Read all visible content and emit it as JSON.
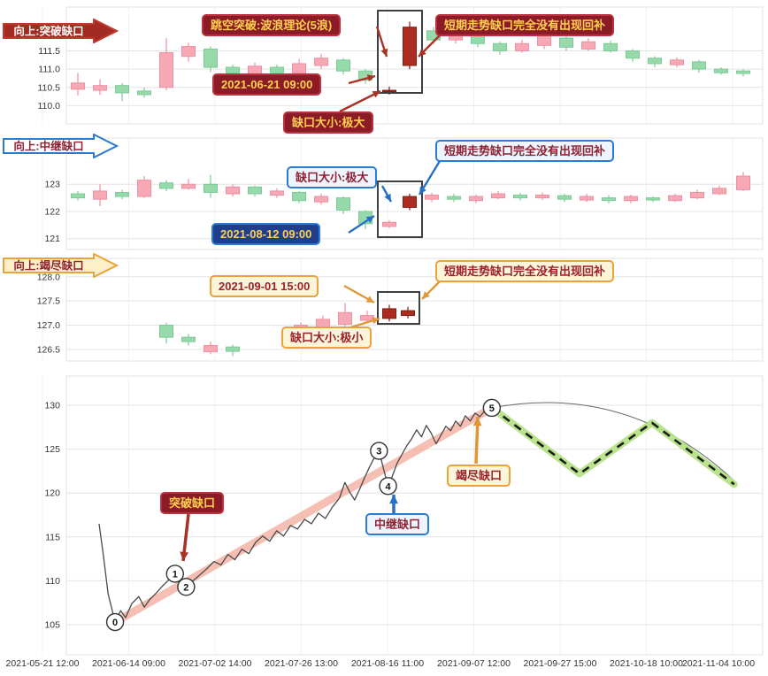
{
  "colors": {
    "up": "#f6a9b4",
    "up_border": "#ef8fa0",
    "down": "#97d9ab",
    "down_border": "#7ccb97",
    "gap_candle": "#ac2d20",
    "gap_candle_border": "#7e1c12",
    "trend_band": "#f3b4a6",
    "forecast_band": "#b5e287",
    "price_line": "#4a4a4a",
    "red_accent": "#a93226",
    "blue_accent": "#2471c7",
    "orange_accent": "#e0973a",
    "grid": "#e4e4e4",
    "highlight_box": "#3c4043"
  },
  "candle_format": "x,open,close,low,high,kind(u=up,d=down,g=gap-candle)",
  "chart_data": [
    {
      "type": "candlestick",
      "name": "breakaway-gap-panel",
      "badge": "向上:突破缺口",
      "ylim": [
        109.5,
        112.7
      ],
      "ytick_labels": [
        "111.5",
        "111.0",
        "110.5",
        "110.0"
      ],
      "ytick_values": [
        111.5,
        111.0,
        110.5,
        110.0
      ],
      "annotations": [
        "跳空突破:波浪理论(5浪)",
        "短期走势缺口完全没有出现回补",
        "2021-06-21 09:00",
        "缺口大小:极大"
      ],
      "candles": [
        [
          88,
          110.45,
          110.62,
          110.28,
          110.9,
          "u"
        ],
        [
          113,
          110.42,
          110.55,
          110.3,
          110.72,
          "u"
        ],
        [
          138,
          110.55,
          110.35,
          110.12,
          110.62,
          "d"
        ],
        [
          163,
          110.4,
          110.3,
          110.22,
          110.5,
          "d"
        ],
        [
          188,
          110.5,
          111.45,
          110.42,
          111.85,
          "u"
        ],
        [
          213,
          111.35,
          111.62,
          111.2,
          111.72,
          "u"
        ],
        [
          238,
          111.55,
          111.05,
          110.92,
          111.62,
          "d"
        ],
        [
          263,
          111.05,
          110.88,
          110.78,
          111.12,
          "d"
        ],
        [
          288,
          110.85,
          111.08,
          110.8,
          111.18,
          "u"
        ],
        [
          313,
          111.05,
          110.9,
          110.8,
          111.12,
          "d"
        ],
        [
          338,
          110.88,
          111.15,
          110.82,
          111.28,
          "u"
        ],
        [
          363,
          111.1,
          111.3,
          111.0,
          111.42,
          "u"
        ],
        [
          388,
          111.25,
          110.95,
          110.85,
          111.3,
          "d"
        ],
        [
          413,
          110.95,
          110.7,
          110.6,
          111.0,
          "d"
        ],
        [
          440,
          110.42,
          110.38,
          110.3,
          110.52,
          "g"
        ],
        [
          463,
          111.1,
          112.15,
          111.0,
          112.3,
          "g"
        ],
        [
          490,
          112.05,
          111.8,
          111.7,
          112.15,
          "d"
        ],
        [
          515,
          111.8,
          112.0,
          111.7,
          112.1,
          "u"
        ],
        [
          540,
          111.95,
          111.7,
          111.6,
          112.0,
          "d"
        ],
        [
          565,
          111.7,
          111.5,
          111.4,
          111.75,
          "d"
        ],
        [
          590,
          111.5,
          111.7,
          111.45,
          111.8,
          "u"
        ],
        [
          615,
          111.65,
          111.92,
          111.55,
          112.02,
          "u"
        ],
        [
          640,
          111.85,
          111.6,
          111.5,
          111.92,
          "d"
        ],
        [
          665,
          111.55,
          111.75,
          111.5,
          111.85,
          "u"
        ],
        [
          690,
          111.7,
          111.5,
          111.45,
          111.78,
          "d"
        ],
        [
          715,
          111.5,
          111.3,
          111.2,
          111.55,
          "d"
        ],
        [
          740,
          111.3,
          111.15,
          111.05,
          111.35,
          "d"
        ],
        [
          765,
          111.12,
          111.25,
          111.05,
          111.32,
          "u"
        ],
        [
          790,
          111.2,
          111.0,
          110.9,
          111.25,
          "d"
        ],
        [
          815,
          111.0,
          110.9,
          110.85,
          111.05,
          "d"
        ],
        [
          840,
          110.95,
          110.88,
          110.8,
          111.0,
          "d"
        ]
      ]
    },
    {
      "type": "candlestick",
      "name": "runaway-gap-panel",
      "badge": "向上:中继缺口",
      "ylim": [
        120.6,
        124.7
      ],
      "ytick_labels": [
        "123",
        "122",
        "121"
      ],
      "ytick_values": [
        123,
        122,
        121
      ],
      "annotations": [
        "缺口大小:极大",
        "短期走势缺口完全没有出现回补",
        "2021-08-12 09:00"
      ],
      "candles": [
        [
          88,
          122.65,
          122.5,
          122.4,
          122.75,
          "d"
        ],
        [
          113,
          122.45,
          122.75,
          122.2,
          123.0,
          "u"
        ],
        [
          138,
          122.7,
          122.55,
          122.45,
          122.8,
          "d"
        ],
        [
          163,
          122.55,
          123.15,
          122.5,
          123.3,
          "u"
        ],
        [
          188,
          123.05,
          122.85,
          122.75,
          123.15,
          "d"
        ],
        [
          213,
          122.85,
          123.0,
          122.8,
          123.2,
          "u"
        ],
        [
          238,
          123.0,
          122.7,
          122.5,
          123.35,
          "d"
        ],
        [
          263,
          122.65,
          122.9,
          122.55,
          123.0,
          "u"
        ],
        [
          288,
          122.9,
          122.65,
          122.55,
          122.95,
          "d"
        ],
        [
          313,
          122.6,
          122.75,
          122.5,
          122.85,
          "u"
        ],
        [
          338,
          122.7,
          122.4,
          122.3,
          122.75,
          "d"
        ],
        [
          363,
          122.35,
          122.55,
          122.25,
          122.65,
          "u"
        ],
        [
          388,
          122.5,
          122.05,
          121.9,
          122.55,
          "d"
        ],
        [
          413,
          122.0,
          121.55,
          121.35,
          122.05,
          "d"
        ],
        [
          440,
          121.45,
          121.6,
          121.38,
          121.68,
          "u"
        ],
        [
          463,
          122.15,
          122.55,
          122.05,
          122.65,
          "g"
        ],
        [
          488,
          122.45,
          122.6,
          122.35,
          122.7,
          "u"
        ],
        [
          513,
          122.55,
          122.45,
          122.35,
          122.65,
          "d"
        ],
        [
          538,
          122.4,
          122.55,
          122.3,
          122.62,
          "u"
        ],
        [
          563,
          122.5,
          122.65,
          122.45,
          122.75,
          "u"
        ],
        [
          588,
          122.6,
          122.5,
          122.4,
          122.68,
          "d"
        ],
        [
          613,
          122.5,
          122.6,
          122.42,
          122.7,
          "u"
        ],
        [
          638,
          122.58,
          122.45,
          122.35,
          122.65,
          "d"
        ],
        [
          663,
          122.42,
          122.55,
          122.35,
          122.65,
          "u"
        ],
        [
          688,
          122.5,
          122.4,
          122.3,
          122.6,
          "d"
        ],
        [
          713,
          122.4,
          122.55,
          122.3,
          122.62,
          "u"
        ],
        [
          738,
          122.5,
          122.42,
          122.35,
          122.55,
          "d"
        ],
        [
          763,
          122.4,
          122.58,
          122.35,
          122.65,
          "u"
        ],
        [
          788,
          122.5,
          122.7,
          122.45,
          122.8,
          "u"
        ],
        [
          813,
          122.65,
          122.85,
          122.6,
          122.95,
          "u"
        ],
        [
          840,
          122.8,
          123.3,
          122.75,
          123.45,
          "u"
        ]
      ]
    },
    {
      "type": "candlestick",
      "name": "exhaustion-gap-panel",
      "badge": "向上:竭尽缺口",
      "ylim": [
        126.26,
        128.38
      ],
      "ytick_labels": [
        "128.0",
        "127.5",
        "127.0",
        "126.5"
      ],
      "ytick_values": [
        128.0,
        127.5,
        127.0,
        126.5
      ],
      "annotations": [
        "2021-09-01 15:00",
        "短期走势缺口完全没有出现回补",
        "缺口大小:极小"
      ],
      "candles": [
        [
          188,
          127.0,
          126.75,
          126.62,
          127.05,
          "d"
        ],
        [
          213,
          126.75,
          126.66,
          126.58,
          126.82,
          "d"
        ],
        [
          238,
          126.45,
          126.58,
          126.4,
          126.66,
          "u"
        ],
        [
          263,
          126.55,
          126.46,
          126.36,
          126.6,
          "d"
        ],
        [
          340,
          126.85,
          127.0,
          126.78,
          127.06,
          "u"
        ],
        [
          365,
          126.95,
          127.12,
          126.86,
          127.2,
          "u"
        ],
        [
          390,
          127.02,
          127.26,
          126.92,
          127.46,
          "u"
        ],
        [
          415,
          127.1,
          127.2,
          127.04,
          127.3,
          "u"
        ],
        [
          440,
          127.14,
          127.34,
          127.08,
          127.42,
          "g"
        ],
        [
          461,
          127.2,
          127.3,
          127.14,
          127.38,
          "g"
        ]
      ]
    },
    {
      "type": "line",
      "name": "wave-overview-panel",
      "ylim": [
        101.6,
        133.3
      ],
      "yticks": [
        130,
        125,
        120,
        115,
        110,
        105
      ],
      "x_labels": [
        "2021-05-21 12:00",
        "2021-06-14 09:00",
        "2021-07-02 14:00",
        "2021-07-26 13:00",
        "2021-08-16 11:00",
        "2021-09-07 12:00",
        "2021-09-27 15:00",
        "2021-10-18 10:00",
        "2021-11-04 10:00"
      ],
      "labels": [
        "突破缺口",
        "中继缺口",
        "竭尽缺口"
      ],
      "wave_points": [
        {
          "label": "0",
          "f": 0.07,
          "v": 105.3
        },
        {
          "label": "1",
          "f": 0.156,
          "v": 110.8
        },
        {
          "label": "2",
          "f": 0.172,
          "v": 109.3
        },
        {
          "label": "3",
          "f": 0.449,
          "v": 124.8
        },
        {
          "label": "4",
          "f": 0.462,
          "v": 120.8
        },
        {
          "label": "5",
          "f": 0.611,
          "v": 129.7
        }
      ],
      "trend_line": [
        [
          0.07,
          105.3
        ],
        [
          0.611,
          129.7
        ]
      ],
      "forecast_line": [
        [
          0.611,
          129.7
        ],
        [
          0.737,
          122.2
        ],
        [
          0.841,
          128.0
        ],
        [
          0.959,
          121.0
        ]
      ],
      "price_line": [
        [
          0.047,
          116.5
        ],
        [
          0.053,
          113.0
        ],
        [
          0.06,
          108.5
        ],
        [
          0.07,
          105.3
        ],
        [
          0.078,
          106.6
        ],
        [
          0.085,
          105.8
        ],
        [
          0.094,
          107.4
        ],
        [
          0.104,
          108.2
        ],
        [
          0.112,
          107.0
        ],
        [
          0.12,
          107.9
        ],
        [
          0.129,
          108.6
        ],
        [
          0.138,
          109.4
        ],
        [
          0.147,
          110.1
        ],
        [
          0.156,
          110.8
        ],
        [
          0.164,
          110.0
        ],
        [
          0.172,
          109.3
        ],
        [
          0.182,
          110.0
        ],
        [
          0.192,
          110.7
        ],
        [
          0.202,
          111.4
        ],
        [
          0.212,
          112.2
        ],
        [
          0.222,
          111.8
        ],
        [
          0.232,
          113.0
        ],
        [
          0.242,
          112.4
        ],
        [
          0.252,
          113.6
        ],
        [
          0.262,
          113.1
        ],
        [
          0.272,
          114.4
        ],
        [
          0.282,
          115.1
        ],
        [
          0.292,
          114.5
        ],
        [
          0.302,
          115.7
        ],
        [
          0.312,
          115.1
        ],
        [
          0.322,
          116.3
        ],
        [
          0.332,
          115.9
        ],
        [
          0.342,
          117.0
        ],
        [
          0.352,
          116.5
        ],
        [
          0.362,
          117.7
        ],
        [
          0.372,
          117.1
        ],
        [
          0.382,
          118.4
        ],
        [
          0.392,
          119.4
        ],
        [
          0.4,
          121.2
        ],
        [
          0.407,
          120.1
        ],
        [
          0.414,
          119.2
        ],
        [
          0.421,
          120.4
        ],
        [
          0.428,
          121.7
        ],
        [
          0.435,
          122.9
        ],
        [
          0.442,
          124.0
        ],
        [
          0.449,
          124.8
        ],
        [
          0.456,
          122.6
        ],
        [
          0.462,
          120.8
        ],
        [
          0.468,
          121.9
        ],
        [
          0.475,
          123.4
        ],
        [
          0.482,
          124.4
        ],
        [
          0.489,
          125.4
        ],
        [
          0.496,
          126.2
        ],
        [
          0.503,
          127.2
        ],
        [
          0.51,
          126.4
        ],
        [
          0.517,
          127.7
        ],
        [
          0.524,
          126.8
        ],
        [
          0.531,
          125.6
        ],
        [
          0.538,
          126.6
        ],
        [
          0.545,
          127.6
        ],
        [
          0.552,
          127.1
        ],
        [
          0.559,
          128.2
        ],
        [
          0.566,
          127.6
        ],
        [
          0.573,
          128.8
        ],
        [
          0.58,
          128.2
        ],
        [
          0.587,
          129.1
        ],
        [
          0.594,
          128.7
        ],
        [
          0.601,
          129.4
        ],
        [
          0.611,
          129.7
        ]
      ]
    }
  ]
}
